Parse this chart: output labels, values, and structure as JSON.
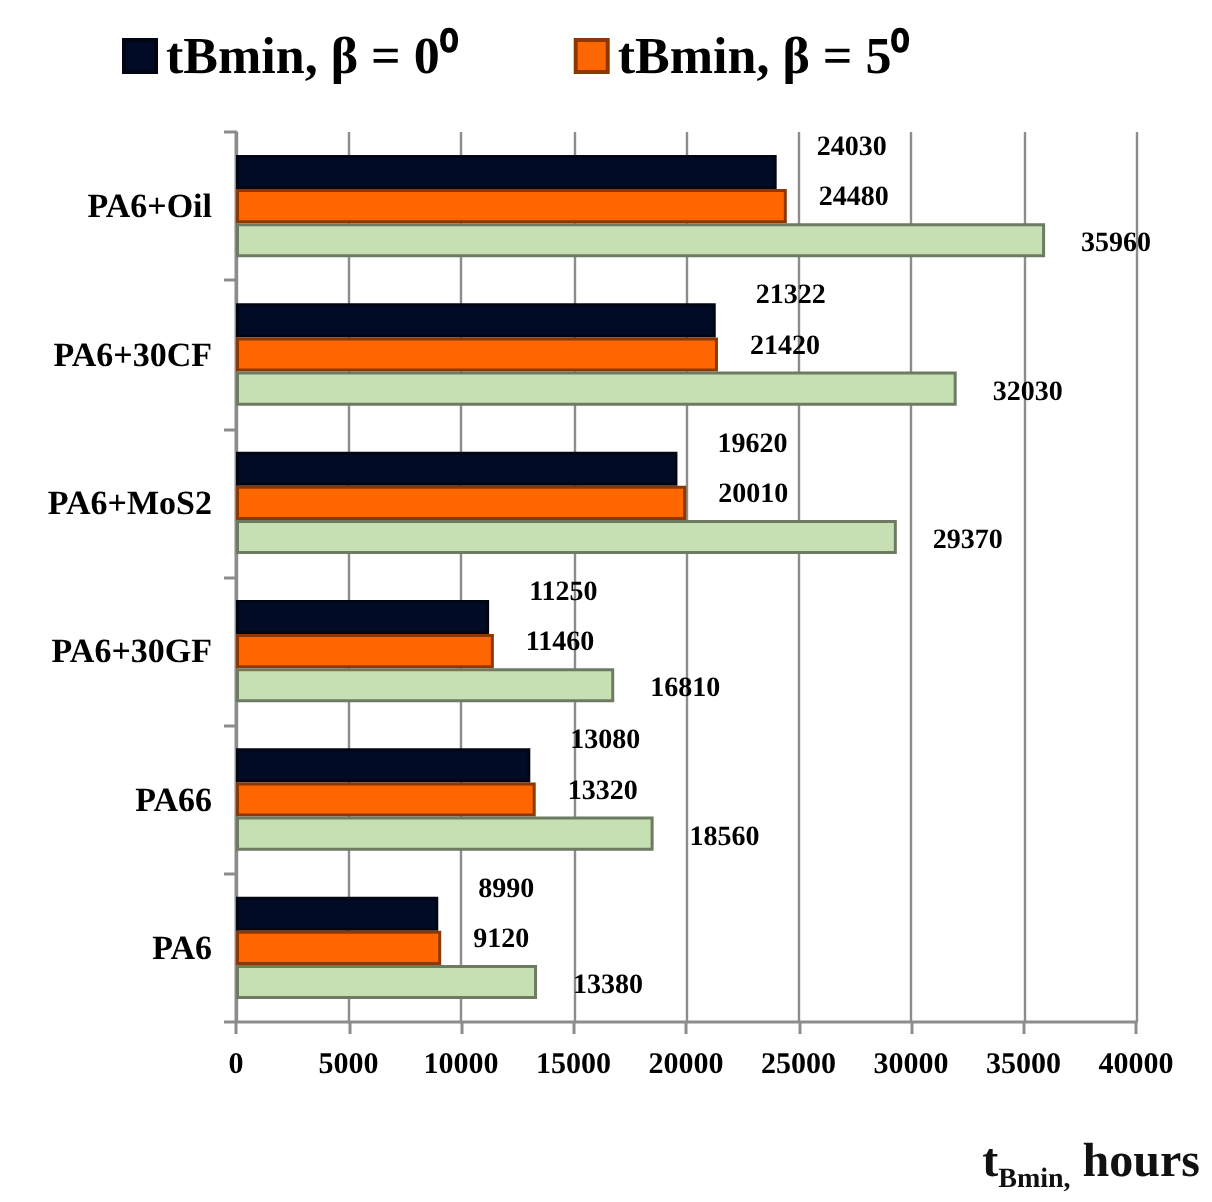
{
  "chart_data": {
    "type": "bar",
    "orientation": "horizontal",
    "categories": [
      "PA6+Oil",
      "PA6+30CF",
      "PA6+MoS2",
      "PA6+30GF",
      "PA66",
      "PA6"
    ],
    "series": [
      {
        "name": "tBmin, β = 0⁰",
        "color": "#020b26",
        "values": [
          24030,
          21322,
          19620,
          11250,
          13080,
          8990
        ]
      },
      {
        "name": "tBmin, β = 5⁰",
        "color": "#ff6600",
        "values": [
          24480,
          21420,
          20010,
          11460,
          13320,
          9120
        ]
      },
      {
        "color": "#c6e0b4",
        "values": [
          35960,
          32030,
          29370,
          16810,
          18560,
          13380
        ]
      }
    ],
    "xlim": [
      0,
      40000
    ],
    "xticks": [
      0,
      5000,
      10000,
      15000,
      20000,
      25000,
      30000,
      35000,
      40000
    ],
    "xlabel": "t$_{Bmin,}$ hours",
    "data_labels": true,
    "grid": "x",
    "legend": "top"
  }
}
